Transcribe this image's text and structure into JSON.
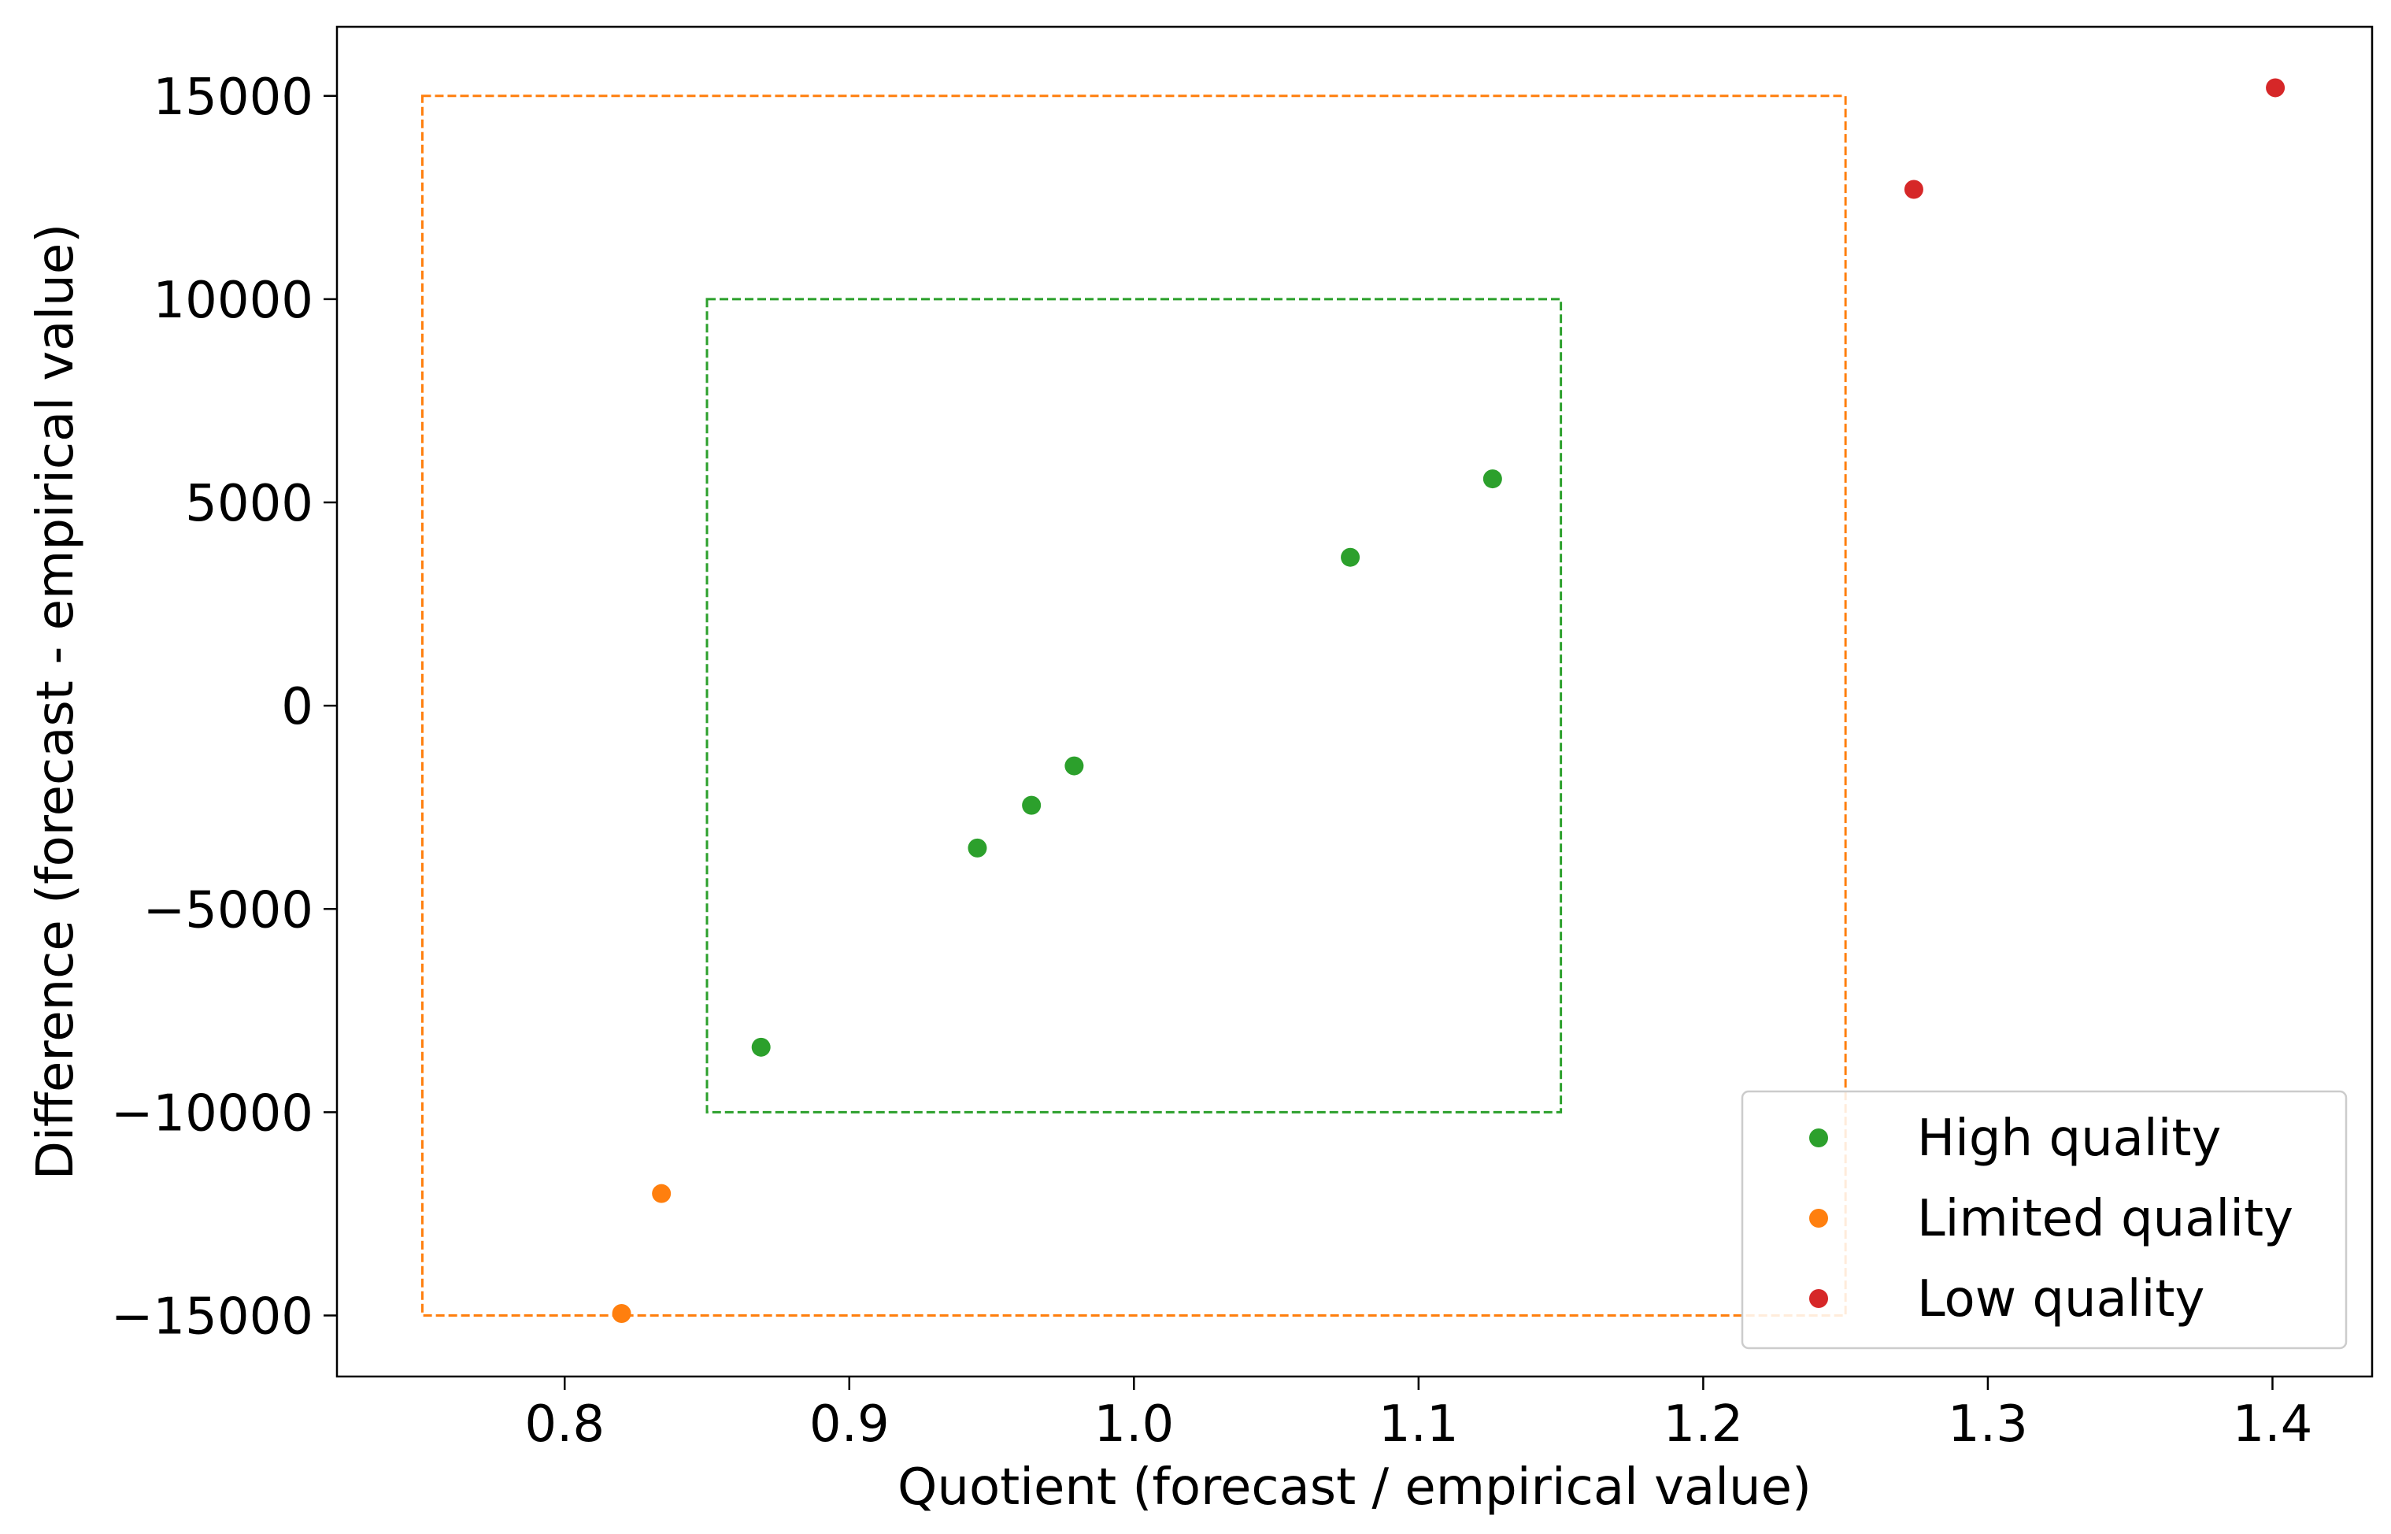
{
  "chart_data": {
    "type": "scatter",
    "xlabel": "Quotient (forecast / empirical value)",
    "ylabel": "Difference (forecast - empirical value)",
    "xlim": [
      0.72,
      1.435
    ],
    "ylim": [
      -16500,
      16700
    ],
    "xticks": [
      0.8,
      0.9,
      1.0,
      1.1,
      1.2,
      1.3,
      1.4
    ],
    "xtick_labels": [
      "0.8",
      "0.9",
      "1.0",
      "1.1",
      "1.2",
      "1.3",
      "1.4"
    ],
    "yticks": [
      15000,
      10000,
      5000,
      0,
      -5000,
      -10000,
      -15000
    ],
    "ytick_labels": [
      "15000",
      "10000",
      "5000",
      "0",
      "−5000",
      "−10000",
      "−15000"
    ],
    "grid": false,
    "legend_position": "bottom-right",
    "series": [
      {
        "name": "High quality",
        "color": "#2ca02c",
        "points": [
          {
            "x": 0.869,
            "y": -8400
          },
          {
            "x": 0.945,
            "y": -3500
          },
          {
            "x": 0.964,
            "y": -2450
          },
          {
            "x": 0.979,
            "y": -1480
          },
          {
            "x": 1.076,
            "y": 3650
          },
          {
            "x": 1.126,
            "y": 5580
          }
        ]
      },
      {
        "name": "Limited quality",
        "color": "#ff7f0e",
        "points": [
          {
            "x": 0.834,
            "y": -12000
          },
          {
            "x": 0.82,
            "y": -14950
          }
        ]
      },
      {
        "name": "Low quality",
        "color": "#d62728",
        "points": [
          {
            "x": 1.274,
            "y": 12700
          },
          {
            "x": 1.401,
            "y": 15200
          }
        ]
      }
    ],
    "regions": [
      {
        "name": "limited-quality-region",
        "color": "#ff7f0e",
        "x": [
          0.75,
          1.25
        ],
        "y": [
          -15000,
          15000
        ]
      },
      {
        "name": "high-quality-region",
        "color": "#2ca02c",
        "x": [
          0.85,
          1.15
        ],
        "y": [
          -10000,
          10000
        ]
      }
    ]
  }
}
